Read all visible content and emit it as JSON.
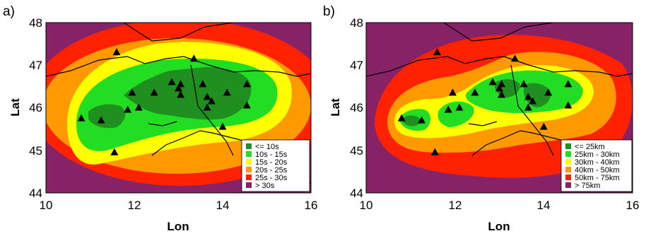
{
  "chart_data": [
    {
      "type": "heatmap",
      "panel": "a)",
      "xlabel": "Lon",
      "ylabel": "Lat",
      "xlim": [
        10,
        16
      ],
      "ylim": [
        44,
        48
      ],
      "xticks": [
        "10",
        "12",
        "14",
        "16"
      ],
      "yticks": [
        "44",
        "45",
        "46",
        "47",
        "48"
      ],
      "legend_position": "bottom-right",
      "legend": [
        {
          "label": "<= 10s",
          "color": "#1f8f1f"
        },
        {
          "label": "10s - 15s",
          "color": "#22dd22"
        },
        {
          "label": "15s - 20s",
          "color": "#ffff00"
        },
        {
          "label": "20s - 25s",
          "color": "#ff9900"
        },
        {
          "label": "25s - 30s",
          "color": "#ff2200"
        },
        {
          "label": "> 30s",
          "color": "#882266"
        }
      ]
    },
    {
      "type": "heatmap",
      "panel": "b)",
      "xlabel": "Lon",
      "ylabel": "Lat",
      "xlim": [
        10,
        16
      ],
      "ylim": [
        44,
        48
      ],
      "xticks": [
        "10",
        "12",
        "14",
        "16"
      ],
      "yticks": [
        "44",
        "45",
        "46",
        "47",
        "48"
      ],
      "legend_position": "bottom-right",
      "legend": [
        {
          "label": "<= 25km",
          "color": "#1f8f1f"
        },
        {
          "label": "25km - 30km",
          "color": "#22dd22"
        },
        {
          "label": "30km - 40km",
          "color": "#ffff00"
        },
        {
          "label": "40km - 50km",
          "color": "#ff9900"
        },
        {
          "label": "50km - 75km",
          "color": "#ff2200"
        },
        {
          "label": "> 75km",
          "color": "#882266"
        }
      ]
    }
  ],
  "stations": [
    {
      "lon": 11.6,
      "lat": 47.3
    },
    {
      "lon": 13.35,
      "lat": 47.15
    },
    {
      "lon": 12.85,
      "lat": 46.6
    },
    {
      "lon": 13.05,
      "lat": 46.55
    },
    {
      "lon": 13.0,
      "lat": 46.45
    },
    {
      "lon": 12.45,
      "lat": 46.35
    },
    {
      "lon": 11.95,
      "lat": 46.35
    },
    {
      "lon": 13.55,
      "lat": 46.55
    },
    {
      "lon": 14.55,
      "lat": 46.55
    },
    {
      "lon": 14.1,
      "lat": 46.35
    },
    {
      "lon": 13.05,
      "lat": 46.3
    },
    {
      "lon": 13.65,
      "lat": 46.25
    },
    {
      "lon": 13.75,
      "lat": 46.15
    },
    {
      "lon": 14.55,
      "lat": 46.05
    },
    {
      "lon": 13.65,
      "lat": 46.0
    },
    {
      "lon": 11.85,
      "lat": 45.95
    },
    {
      "lon": 12.1,
      "lat": 46.0
    },
    {
      "lon": 10.8,
      "lat": 45.75
    },
    {
      "lon": 11.25,
      "lat": 45.7
    },
    {
      "lon": 14.0,
      "lat": 45.55
    },
    {
      "lon": 11.55,
      "lat": 44.95
    }
  ]
}
